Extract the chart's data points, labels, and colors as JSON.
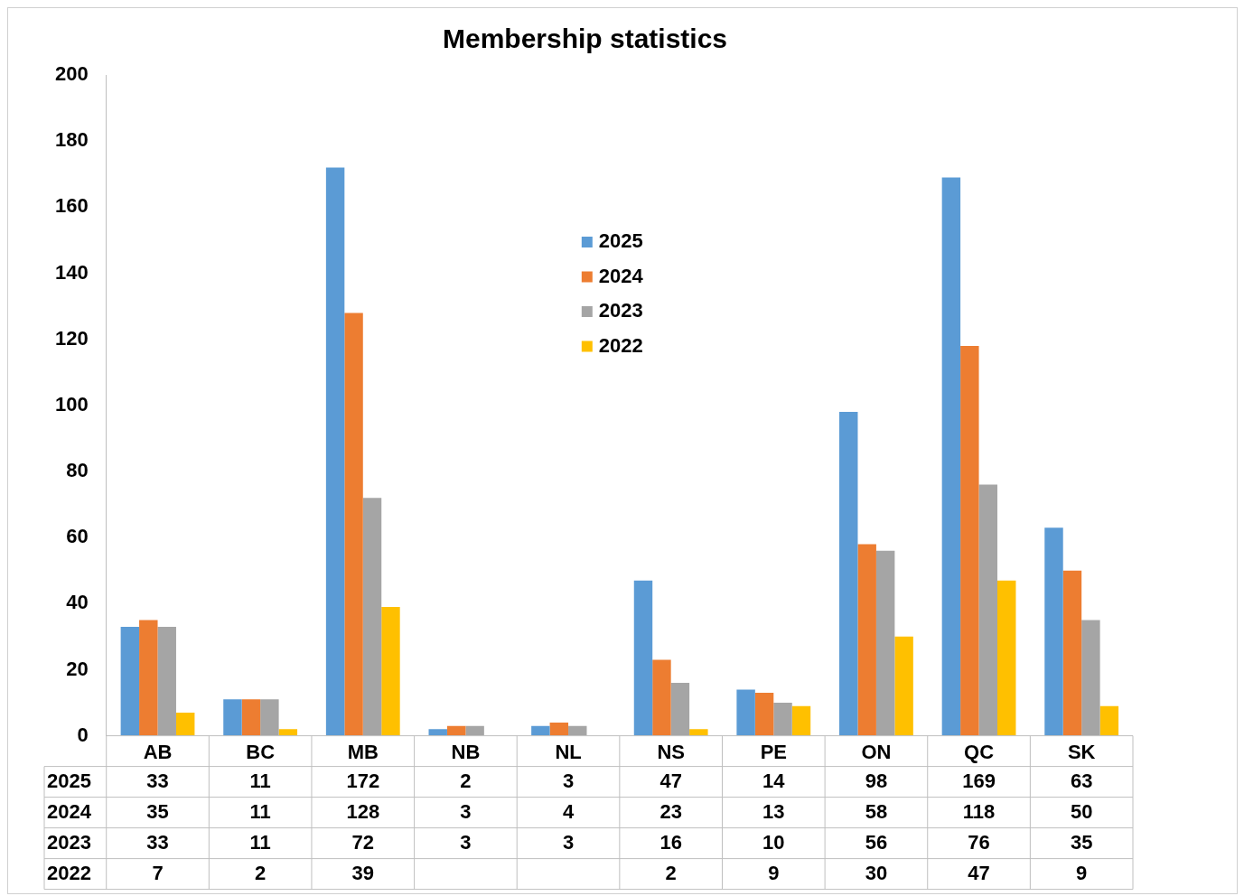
{
  "chart_data": {
    "type": "bar",
    "title": "Membership statistics",
    "categories": [
      "AB",
      "BC",
      "MB",
      "NB",
      "NL",
      "NS",
      "PE",
      "ON",
      "QC",
      "SK"
    ],
    "series": [
      {
        "name": "2025",
        "color": "#5b9bd5",
        "values": [
          33,
          11,
          172,
          2,
          3,
          47,
          14,
          98,
          169,
          63
        ]
      },
      {
        "name": "2024",
        "color": "#ed7d31",
        "values": [
          35,
          11,
          128,
          3,
          4,
          23,
          13,
          58,
          118,
          50
        ]
      },
      {
        "name": "2023",
        "color": "#a5a5a5",
        "values": [
          33,
          11,
          72,
          3,
          3,
          16,
          10,
          56,
          76,
          35
        ]
      },
      {
        "name": "2022",
        "color": "#ffc000",
        "values": [
          7,
          2,
          39,
          null,
          null,
          2,
          9,
          30,
          47,
          9
        ]
      }
    ],
    "ylim": [
      0,
      200
    ],
    "yticks": [
      0,
      20,
      40,
      60,
      80,
      100,
      120,
      140,
      160,
      180,
      200
    ],
    "grid": false,
    "legend": "top",
    "data_labels": true
  }
}
